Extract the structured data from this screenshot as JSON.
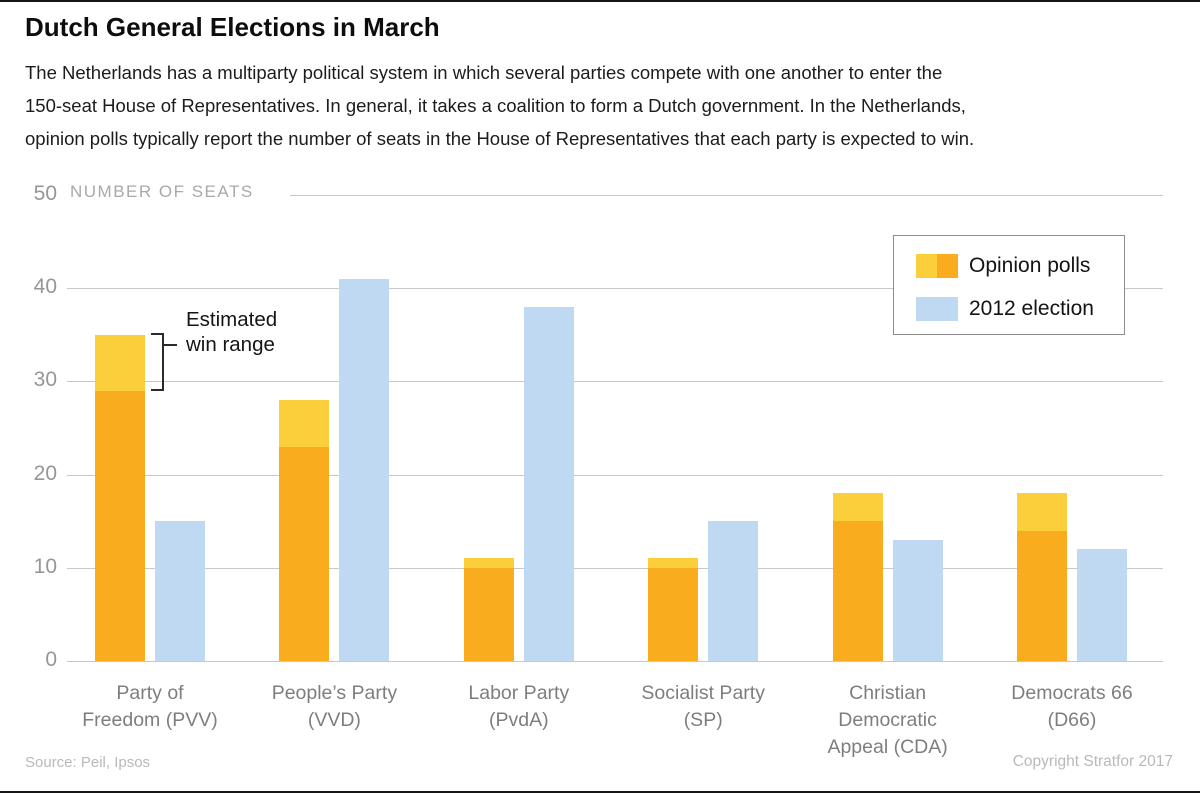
{
  "header": {
    "title": "Dutch General Elections in March",
    "description_lines": [
      "The Netherlands has a multiparty political system in which several parties compete with one another to enter the",
      "150-seat House of Representatives. In general, it takes a coalition to form a Dutch government. In the Netherlands,",
      "opinion polls typically report the number of seats in the House of Representatives that each party is expected to win."
    ]
  },
  "chart_data": {
    "type": "bar",
    "ylabel": "NUMBER OF SEATS",
    "ylim": [
      0,
      50
    ],
    "yticks": [
      0,
      10,
      20,
      30,
      40,
      50
    ],
    "grid": true,
    "legend_position": "top-right",
    "categories": [
      {
        "name": "Party of Freedom (PVV)",
        "label_lines": [
          "Party of",
          "Freedom (PVV)"
        ]
      },
      {
        "name": "People’s Party (VVD)",
        "label_lines": [
          "People’s Party",
          "(VVD)"
        ]
      },
      {
        "name": "Labor Party (PvdA)",
        "label_lines": [
          "Labor Party",
          "(PvdA)"
        ]
      },
      {
        "name": "Socialist Party (SP)",
        "label_lines": [
          "Socialist Party",
          "(SP)"
        ]
      },
      {
        "name": "Christian Democratic Appeal (CDA)",
        "label_lines": [
          "Christian",
          "Democratic",
          "Appeal (CDA)"
        ]
      },
      {
        "name": "Democrats 66 (D66)",
        "label_lines": [
          "Democrats 66",
          "(D66)"
        ]
      }
    ],
    "series": [
      {
        "name": "Opinion polls",
        "kind": "estimated-win-range",
        "low": [
          29,
          23,
          10,
          10,
          15,
          14
        ],
        "high": [
          35,
          28,
          11,
          11,
          18,
          18
        ]
      },
      {
        "name": "2012 election",
        "kind": "single-value",
        "values": [
          15,
          41,
          38,
          15,
          13,
          12
        ]
      }
    ],
    "annotation": {
      "lines": [
        "Estimated",
        "win range"
      ],
      "attached_to": "Party of Freedom (PVV) opinion poll range"
    }
  },
  "colors": {
    "poll_base": "#F9AC1E",
    "poll_range": "#FBCF3B",
    "election_2012": "#BFD9F2",
    "gridline": "#C7C7C7",
    "axis_text": "#969696",
    "seats_label": "#A9A9A9",
    "category_text": "#7E7E7E",
    "footer_text": "#B9B9B9"
  },
  "footer": {
    "source": "Source: Peil, Ipsos",
    "copyright": "Copyright Stratfor 2017"
  }
}
